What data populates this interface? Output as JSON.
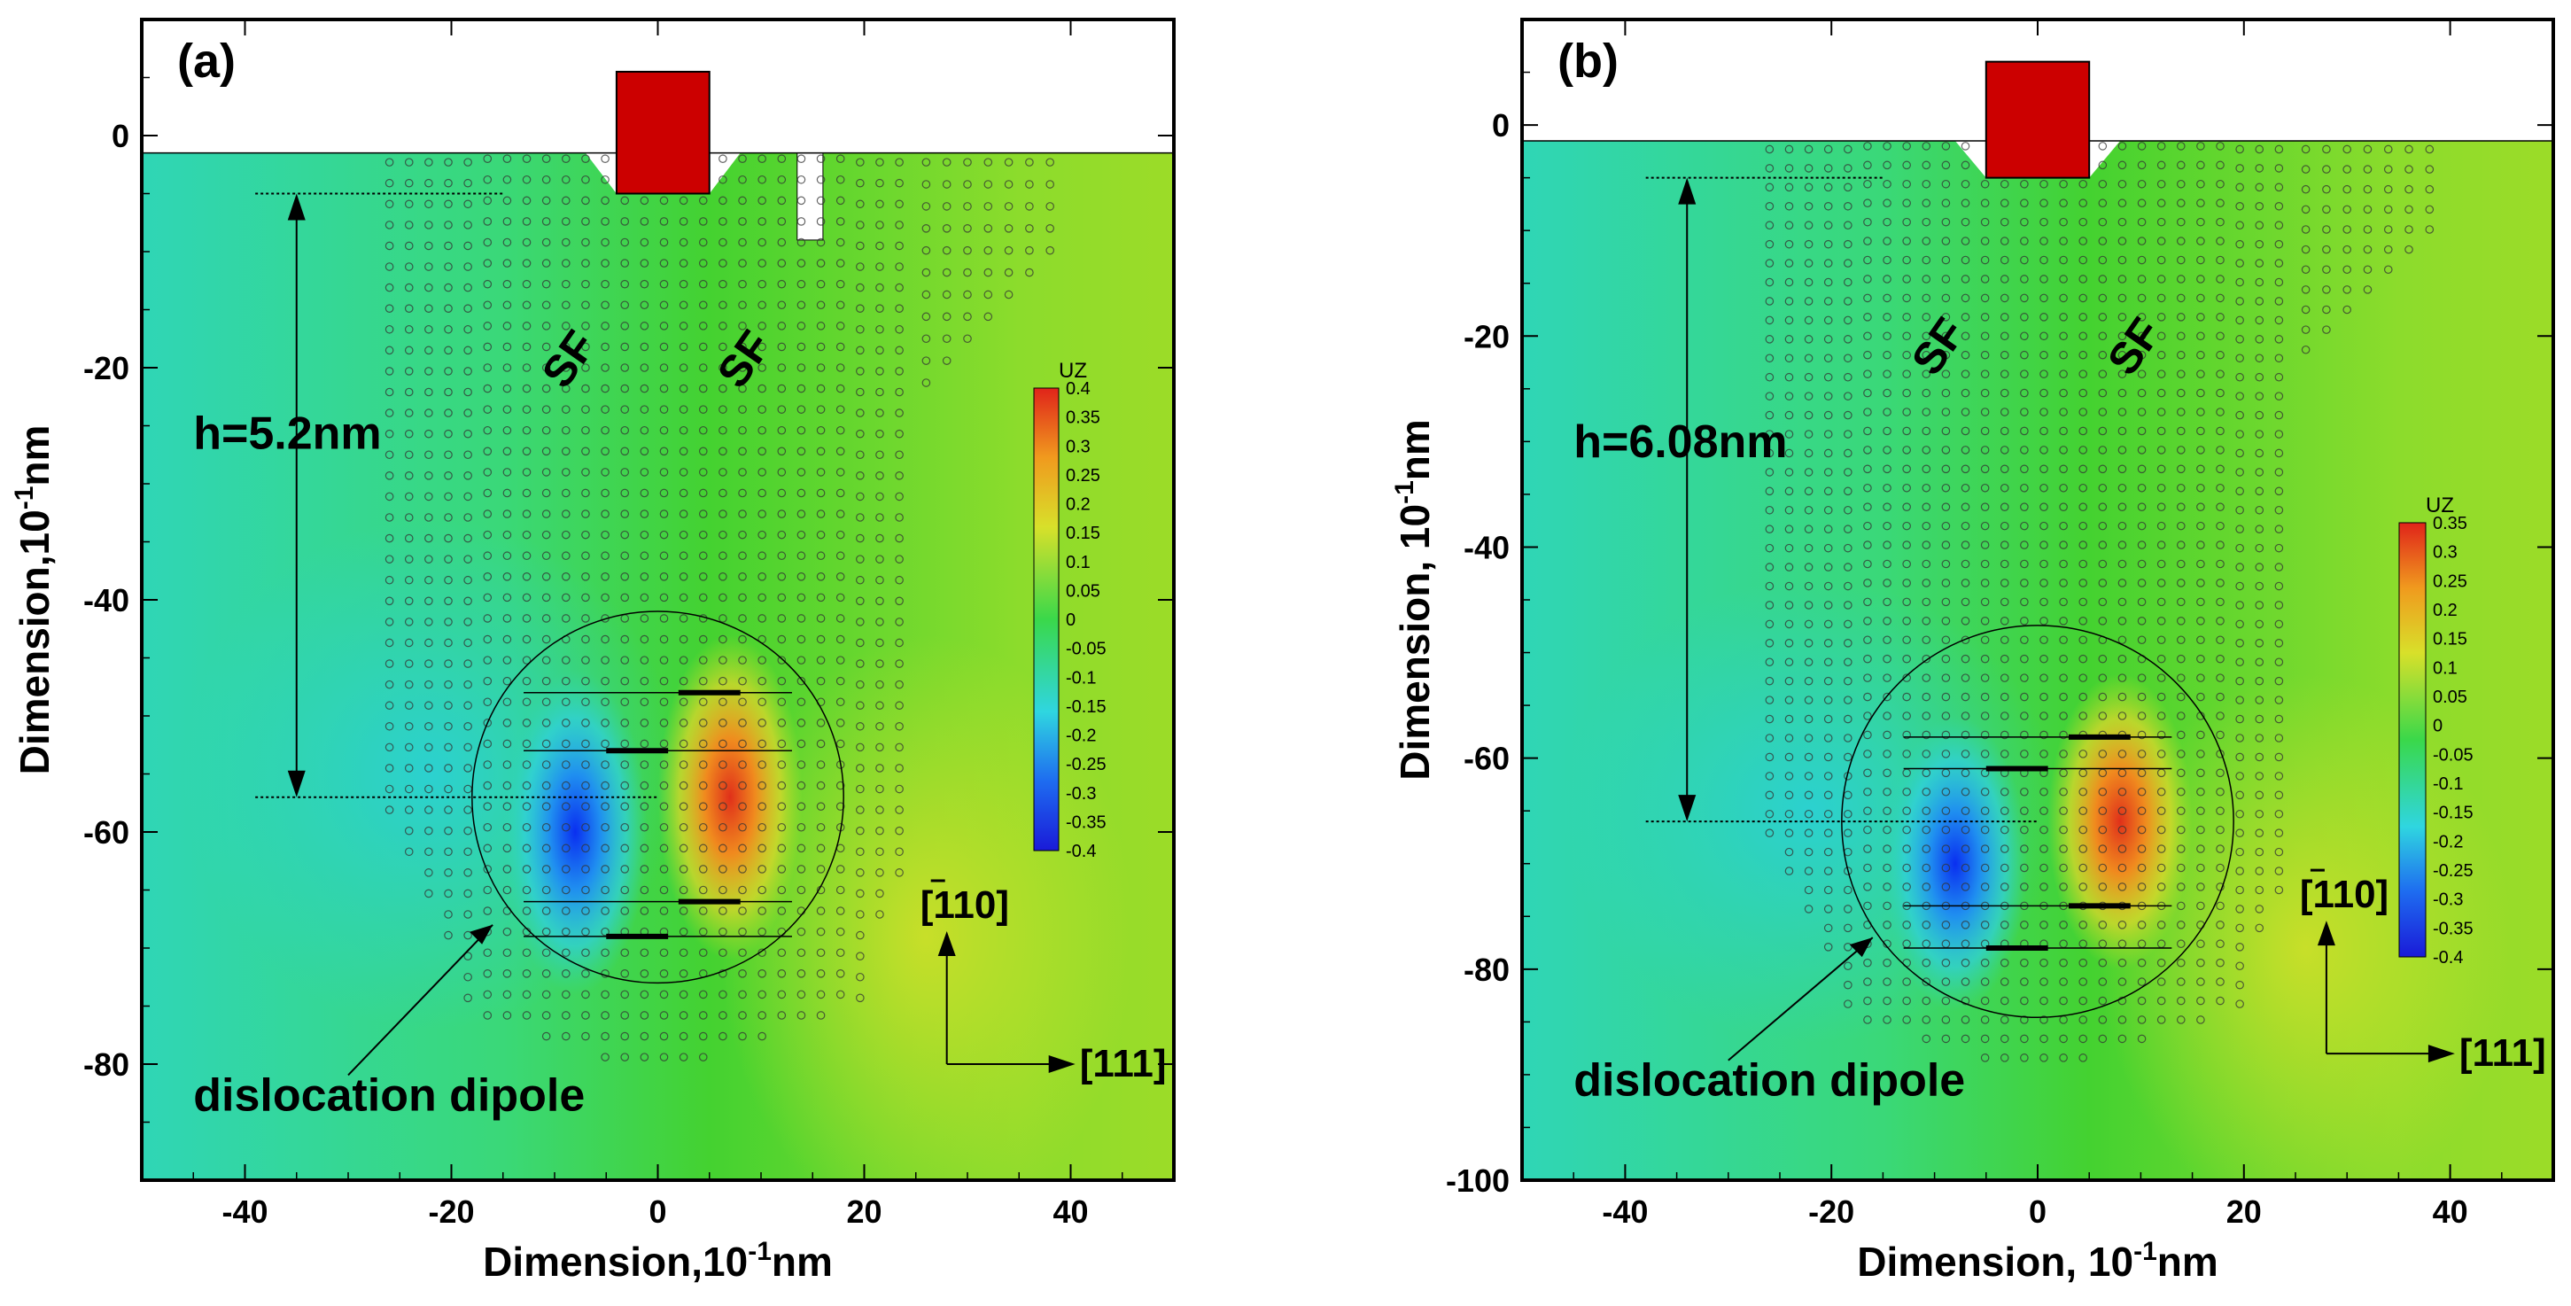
{
  "chart_data": [
    {
      "panel_label": "(a)",
      "type": "contour",
      "xlabel": "Dimension,10",
      "xlabel_exp": "-1",
      "xlabel_unit": "nm",
      "ylabel": "Dimension,10",
      "ylabel_exp": "-1",
      "ylabel_unit": "nm",
      "xlim": [
        -50,
        50
      ],
      "ylim": [
        -90,
        10
      ],
      "xticks": [
        -40,
        -20,
        0,
        20,
        40
      ],
      "yticks": [
        0,
        -20,
        -40,
        -60,
        -80
      ],
      "surface_y": -1.5,
      "indenter": {
        "x": [
          -4,
          5
        ],
        "y": [
          -5,
          5.5
        ]
      },
      "gap": {
        "x": [
          13.5,
          16
        ],
        "y_bottom": -9
      },
      "height_label": "h=5.2nm",
      "height_arrow": {
        "y_top": -5,
        "y_bottom": -57,
        "x": -35
      },
      "sf_labels": [
        "SF",
        "SF"
      ],
      "sf_positions": [
        {
          "x": -9,
          "y": -22
        },
        {
          "x": 8,
          "y": -22
        }
      ],
      "dipole_label": "dislocation dipole",
      "dipole_circle": {
        "cx": 0,
        "cy": -57,
        "r": 18
      },
      "dir_up": "[110]",
      "dir_up_bar": "1",
      "dir_right": "[111]",
      "legend": {
        "title": "UZ",
        "ticks": [
          "0.4",
          "0.35",
          "0.3",
          "0.25",
          "0.2",
          "0.15",
          "0.1",
          "0.05",
          "0",
          "-0.05",
          "-0.1",
          "-0.15",
          "-0.2",
          "-0.25",
          "-0.3",
          "-0.35",
          "-0.4"
        ],
        "range": [
          -0.4,
          0.4
        ]
      },
      "uz_field": {
        "negative_lobe": {
          "x": -8,
          "y": -60,
          "value": -0.4
        },
        "positive_lobe": {
          "x": 7,
          "y": -57,
          "value": 0.35
        },
        "top_left_region": -0.1,
        "right_lower_region": 0.15
      },
      "dislocation_lines_y": [
        -48,
        -53,
        -66,
        -69
      ],
      "dislocation_columns_x": [
        -9,
        -2,
        5,
        10
      ]
    },
    {
      "panel_label": "(b)",
      "type": "contour",
      "xlabel": "Dimension, 10",
      "xlabel_exp": "-1",
      "xlabel_unit": "nm",
      "ylabel": "Dimension, 10",
      "ylabel_exp": "-1",
      "ylabel_unit": "nm",
      "xlim": [
        -50,
        50
      ],
      "ylim": [
        -100,
        10
      ],
      "xticks": [
        -40,
        -20,
        0,
        20,
        40
      ],
      "yticks": [
        0,
        -20,
        -40,
        -60,
        -80,
        -100
      ],
      "surface_y": -1.5,
      "indenter": {
        "x": [
          -5,
          5
        ],
        "y": [
          -5,
          6
        ]
      },
      "height_label": "h=6.08nm",
      "height_arrow": {
        "y_top": -5,
        "y_bottom": -66,
        "x": -34
      },
      "sf_labels": [
        "SF",
        "SF"
      ],
      "sf_positions": [
        {
          "x": -10,
          "y": -24
        },
        {
          "x": 9,
          "y": -24
        }
      ],
      "dipole_label": "dislocation dipole",
      "dipole_circle": {
        "cx": 0,
        "cy": -66,
        "r": 19
      },
      "dir_up": "[110]",
      "dir_up_bar": "1",
      "dir_right": "[111]",
      "legend": {
        "title": "UZ",
        "ticks": [
          "0.35",
          "0.3",
          "0.25",
          "0.2",
          "0.15",
          "0.1",
          "0.05",
          "0",
          "-0.05",
          "-0.1",
          "-0.15",
          "-0.2",
          "-0.25",
          "-0.3",
          "-0.35",
          "-0.4"
        ],
        "range": [
          -0.4,
          0.35
        ]
      },
      "uz_field": {
        "negative_lobe": {
          "x": -8,
          "y": -70,
          "value": -0.4
        },
        "positive_lobe": {
          "x": 8,
          "y": -66,
          "value": 0.35
        },
        "top_left_region": -0.1,
        "right_lower_region": 0.15
      },
      "dislocation_lines_y": [
        -58,
        -61,
        -74,
        -78
      ],
      "dislocation_columns_x": [
        -10,
        -2,
        6,
        11
      ]
    }
  ],
  "colors": {
    "indenter": "#cc0000",
    "field_green": "#44d230",
    "field_cyan": "#2fd6b6",
    "field_blue": "#0a2ff0",
    "field_red": "#e0301a",
    "field_yellow": "#d6e028"
  }
}
